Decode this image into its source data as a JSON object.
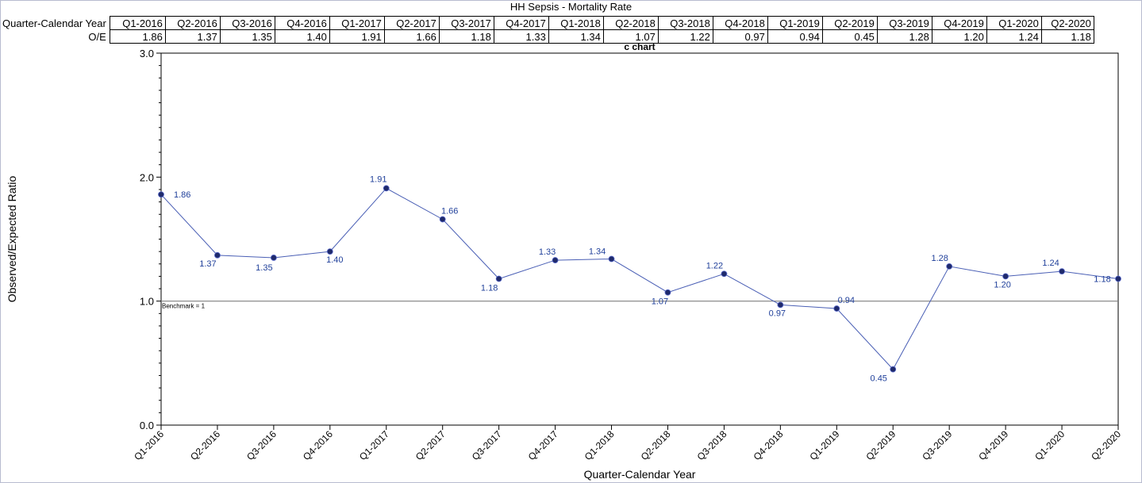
{
  "header": {
    "title": "HH Sepsis - Mortality Rate"
  },
  "table": {
    "row1_label": "Quarter-Calendar Year",
    "row2_label": "O/E",
    "values_text": [
      "1.86",
      "1.37",
      "1.35",
      "1.40",
      "1.91",
      "1.66",
      "1.18",
      "1.33",
      "1.34",
      "1.07",
      "1.22",
      "0.97",
      "0.94",
      "0.45",
      "1.28",
      "1.20",
      "1.24",
      "1.18"
    ]
  },
  "chart_data": {
    "type": "line",
    "title": "c chart",
    "xlabel": "Quarter-Calendar Year",
    "ylabel": "Observed/Expected Ratio",
    "categories": [
      "Q1-2016",
      "Q2-2016",
      "Q3-2016",
      "Q4-2016",
      "Q1-2017",
      "Q2-2017",
      "Q3-2017",
      "Q4-2017",
      "Q1-2018",
      "Q2-2018",
      "Q3-2018",
      "Q4-2018",
      "Q1-2019",
      "Q2-2019",
      "Q3-2019",
      "Q4-2019",
      "Q1-2020",
      "Q2-2020"
    ],
    "series": [
      {
        "values": [
          1.86,
          1.37,
          1.35,
          1.4,
          1.91,
          1.66,
          1.18,
          1.33,
          1.34,
          1.07,
          1.22,
          0.97,
          0.94,
          0.45,
          1.28,
          1.2,
          1.24,
          1.18
        ]
      }
    ],
    "data_labels": [
      "1.86",
      "1.37",
      "1.35",
      "1.40",
      "1.91",
      "1.66",
      "1.18",
      "1.33",
      "1.34",
      "1.07",
      "1.22",
      "0.97",
      "0.94",
      "0.45",
      "1.28",
      "1.20",
      "1.24",
      "1.18"
    ],
    "ylim": [
      0,
      3
    ],
    "y_ticks": [
      0,
      1,
      2,
      3
    ],
    "y_tick_labels": [
      "0.0",
      "1.0",
      "2.0",
      "3.0"
    ],
    "benchmark": {
      "value": 1,
      "label": "Benchmark = 1"
    },
    "colors": {
      "line": "#4a5fb5",
      "marker": "#1f2a6b",
      "label": "#1f3f9a",
      "benchmark": "#808080",
      "axis": "#000000",
      "frame": "#b8bcd0"
    },
    "grid": false,
    "legend": "none"
  }
}
